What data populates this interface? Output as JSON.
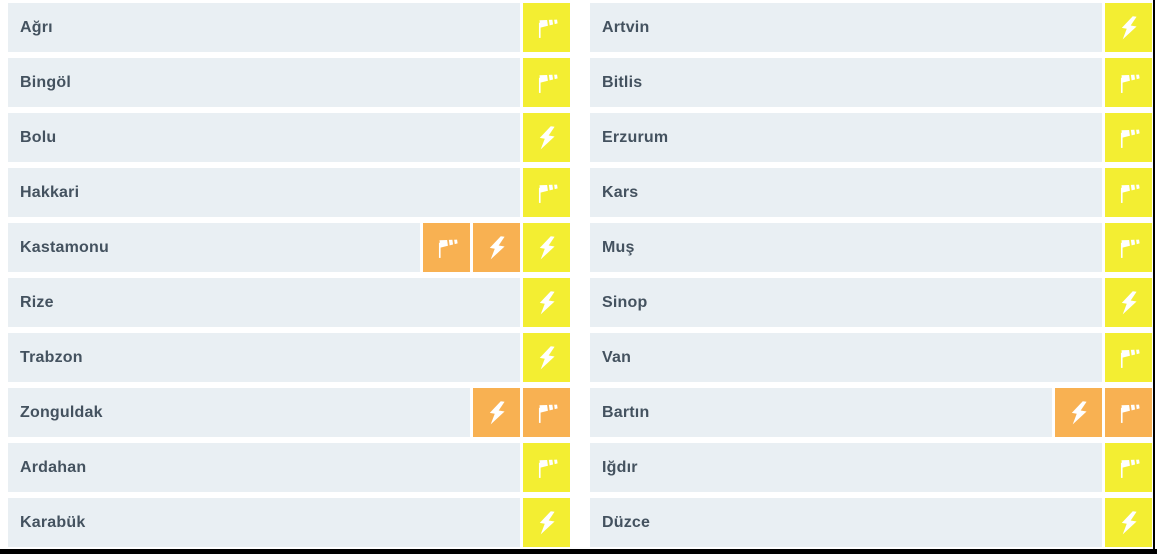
{
  "colors": {
    "page_bg": "#ffffff",
    "row_bg": "#e9eff3",
    "text": "#44525f",
    "yellow": "#f3ee32",
    "orange": "#f8b152",
    "icon_glyph": "#ffffff",
    "frame": "#000000"
  },
  "icon_names": {
    "wind": "windsock-icon",
    "thunderstorm": "lightning-icon"
  },
  "columns": [
    {
      "rows": [
        {
          "city": "Ağrı",
          "warnings": [
            {
              "type": "wind",
              "level": "yellow"
            }
          ]
        },
        {
          "city": "Bingöl",
          "warnings": [
            {
              "type": "wind",
              "level": "yellow"
            }
          ]
        },
        {
          "city": "Bolu",
          "warnings": [
            {
              "type": "thunderstorm",
              "level": "yellow"
            }
          ]
        },
        {
          "city": "Hakkari",
          "warnings": [
            {
              "type": "wind",
              "level": "yellow"
            }
          ]
        },
        {
          "city": "Kastamonu",
          "warnings": [
            {
              "type": "wind",
              "level": "orange"
            },
            {
              "type": "thunderstorm",
              "level": "orange"
            },
            {
              "type": "thunderstorm",
              "level": "yellow"
            }
          ]
        },
        {
          "city": "Rize",
          "warnings": [
            {
              "type": "thunderstorm",
              "level": "yellow"
            }
          ]
        },
        {
          "city": "Trabzon",
          "warnings": [
            {
              "type": "thunderstorm",
              "level": "yellow"
            }
          ]
        },
        {
          "city": "Zonguldak",
          "warnings": [
            {
              "type": "thunderstorm",
              "level": "orange"
            },
            {
              "type": "wind",
              "level": "orange"
            }
          ]
        },
        {
          "city": "Ardahan",
          "warnings": [
            {
              "type": "wind",
              "level": "yellow"
            }
          ]
        },
        {
          "city": "Karabük",
          "warnings": [
            {
              "type": "thunderstorm",
              "level": "yellow"
            }
          ]
        }
      ]
    },
    {
      "rows": [
        {
          "city": "Artvin",
          "warnings": [
            {
              "type": "thunderstorm",
              "level": "yellow"
            }
          ]
        },
        {
          "city": "Bitlis",
          "warnings": [
            {
              "type": "wind",
              "level": "yellow"
            }
          ]
        },
        {
          "city": "Erzurum",
          "warnings": [
            {
              "type": "wind",
              "level": "yellow"
            }
          ]
        },
        {
          "city": "Kars",
          "warnings": [
            {
              "type": "wind",
              "level": "yellow"
            }
          ]
        },
        {
          "city": "Muş",
          "warnings": [
            {
              "type": "wind",
              "level": "yellow"
            }
          ]
        },
        {
          "city": "Sinop",
          "warnings": [
            {
              "type": "thunderstorm",
              "level": "yellow"
            }
          ]
        },
        {
          "city": "Van",
          "warnings": [
            {
              "type": "wind",
              "level": "yellow"
            }
          ]
        },
        {
          "city": "Bartın",
          "warnings": [
            {
              "type": "thunderstorm",
              "level": "orange"
            },
            {
              "type": "wind",
              "level": "orange"
            }
          ]
        },
        {
          "city": "Iğdır",
          "warnings": [
            {
              "type": "wind",
              "level": "yellow"
            }
          ]
        },
        {
          "city": "Düzce",
          "warnings": [
            {
              "type": "thunderstorm",
              "level": "yellow"
            }
          ]
        }
      ]
    }
  ]
}
